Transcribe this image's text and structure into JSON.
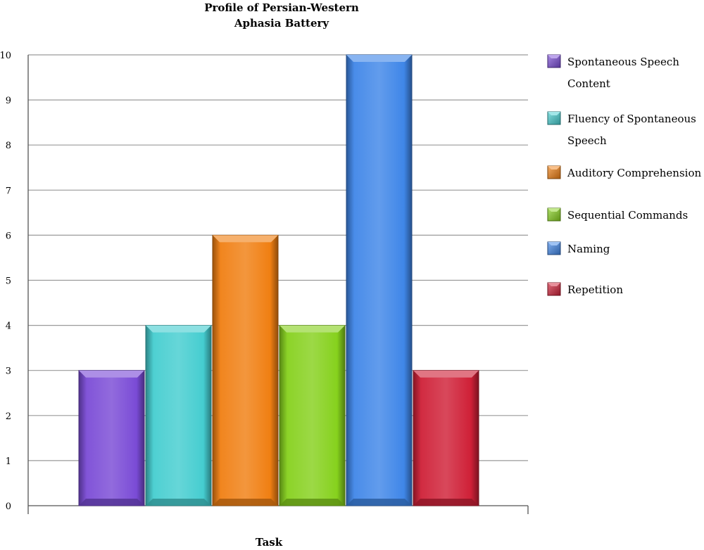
{
  "chart_data": {
    "type": "bar",
    "title_lines": [
      "Profile of Persian-Western",
      "Aphasia Battery"
    ],
    "xlabel": "Task",
    "ylabel": "",
    "ylim": [
      0,
      10
    ],
    "yticks": [
      "0",
      "1",
      "2",
      "3",
      "4",
      "5",
      "6",
      "7",
      "8",
      "9",
      "10"
    ],
    "grid": true,
    "legend_position": "right",
    "series": [
      {
        "name_lines": [
          "Spontaneous Speech",
          "Content"
        ],
        "value": 3,
        "color": "#7a4bd6"
      },
      {
        "name_lines": [
          "Fluency of Spontaneous",
          "Speech"
        ],
        "value": 4,
        "color": "#45cdd0"
      },
      {
        "name_lines": [
          "Auditory Comprehension"
        ],
        "value": 6,
        "color": "#f07f12"
      },
      {
        "name_lines": [
          "Sequential Commands"
        ],
        "value": 4,
        "color": "#86d11d"
      },
      {
        "name_lines": [
          "Naming"
        ],
        "value": 10,
        "color": "#3f86e8"
      },
      {
        "name_lines": [
          "Repetition"
        ],
        "value": 3,
        "color": "#cf2037"
      }
    ]
  }
}
